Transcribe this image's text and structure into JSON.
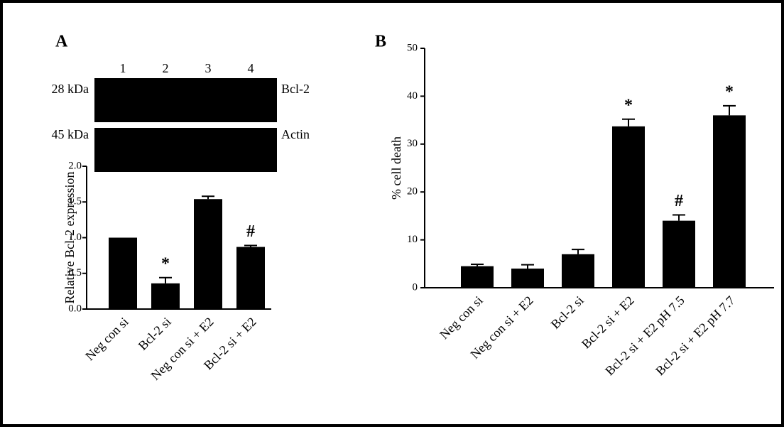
{
  "chart_data": [
    {
      "type": "bar",
      "panel": "A",
      "ylabel": "Relative Bcl-2 expression",
      "categories": [
        "Neg con si",
        "Bcl-2 si",
        "Neg con si + E2",
        "Bcl-2 si + E2"
      ],
      "values": [
        1.0,
        0.36,
        1.54,
        0.87
      ],
      "errors": [
        0.0,
        0.08,
        0.04,
        0.02
      ],
      "color": "#000000",
      "ylim": [
        0,
        2
      ],
      "yticks": [
        {
          "value": 0,
          "label": "0.0"
        },
        {
          "value": 0.5,
          "label": "0.5"
        },
        {
          "value": 1,
          "label": "1.0"
        },
        {
          "value": 1.5,
          "label": "1.5"
        },
        {
          "value": 2,
          "label": "2.0"
        }
      ],
      "annotations": [
        {
          "text": "*",
          "category": "Bcl-2 si"
        },
        {
          "text": "#",
          "category": "Bcl-2 si + E2"
        }
      ],
      "blot": {
        "lanes": [
          "1",
          "2",
          "3",
          "4"
        ],
        "rows": [
          {
            "size": "28 kDa",
            "protein": "Bcl-2"
          },
          {
            "size": "45 kDa",
            "protein": "Actin"
          }
        ]
      }
    },
    {
      "type": "bar",
      "panel": "B",
      "ylabel": "% cell death",
      "categories": [
        "Neg con si",
        "Neg con si + E2",
        "Bcl-2 si",
        "Bcl-2 si + E2",
        "Bcl-2 si + E2 pH 7.5",
        "Bcl-2 si + E2 pH 7.7"
      ],
      "values": [
        4.5,
        4.0,
        7.0,
        33.7,
        14.0,
        36.0
      ],
      "errors": [
        0.4,
        0.8,
        1.0,
        1.5,
        1.2,
        2.0
      ],
      "color": "#000000",
      "ylim": [
        0,
        50
      ],
      "yticks": [
        0,
        10,
        20,
        30,
        40,
        50
      ],
      "annotations": [
        {
          "text": "*",
          "category": "Bcl-2 si + E2"
        },
        {
          "text": "#",
          "category": "Bcl-2 si + E2 pH 7.5"
        },
        {
          "text": "*",
          "category": "Bcl-2 si + E2 pH 7.7"
        }
      ]
    }
  ]
}
